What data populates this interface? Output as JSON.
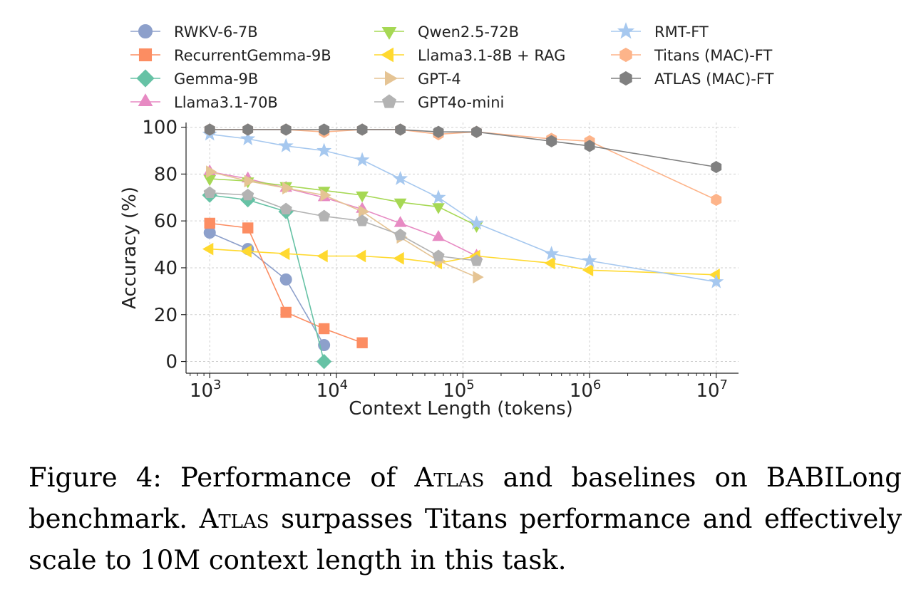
{
  "chart_data": {
    "type": "line",
    "x_scale": "log",
    "xlabel": "Context Length (tokens)",
    "ylabel": "Accuracy (%)",
    "xlim": [
      650,
      15000000
    ],
    "ylim": [
      -5,
      102
    ],
    "grid": true,
    "legend_position": "top",
    "x_ticks": [
      {
        "value": 1000,
        "base": "10",
        "exp": "3"
      },
      {
        "value": 10000,
        "base": "10",
        "exp": "4"
      },
      {
        "value": 100000,
        "base": "10",
        "exp": "5"
      },
      {
        "value": 1000000,
        "base": "10",
        "exp": "6"
      },
      {
        "value": 10000000,
        "base": "10",
        "exp": "7"
      }
    ],
    "y_ticks": [
      0,
      20,
      40,
      60,
      80,
      100
    ],
    "series": [
      {
        "name": "RWKV-6-7B",
        "color": "#8da0cb",
        "marker": "circle",
        "x": [
          1000,
          2000,
          4000,
          8000
        ],
        "y": [
          55,
          48,
          35,
          7
        ]
      },
      {
        "name": "RecurrentGemma-9B",
        "color": "#fc8d62",
        "marker": "square",
        "x": [
          1000,
          2000,
          4000,
          8000,
          16000
        ],
        "y": [
          59,
          57,
          21,
          14,
          8
        ]
      },
      {
        "name": "Gemma-9B",
        "color": "#66c2a5",
        "marker": "diamond",
        "x": [
          1000,
          2000,
          4000,
          8000
        ],
        "y": [
          71,
          69,
          64,
          0
        ]
      },
      {
        "name": "Llama3.1-70B",
        "color": "#e78ac3",
        "marker": "triangle-up",
        "x": [
          1000,
          2000,
          4000,
          8000,
          16000,
          32000,
          64000,
          128000
        ],
        "y": [
          81,
          78,
          74,
          70,
          65,
          59,
          53,
          45
        ]
      },
      {
        "name": "Qwen2.5-72B",
        "color": "#a6d854",
        "marker": "triangle-down",
        "x": [
          1000,
          2000,
          4000,
          8000,
          16000,
          32000,
          64000,
          128000
        ],
        "y": [
          78,
          77,
          75,
          73,
          71,
          68,
          66,
          58
        ]
      },
      {
        "name": "Llama3.1-8B + RAG",
        "color": "#ffd92f",
        "marker": "triangle-left",
        "x": [
          1000,
          2000,
          4000,
          8000,
          16000,
          32000,
          64000,
          128000,
          500000,
          1000000,
          10000000
        ],
        "y": [
          48,
          47,
          46,
          45,
          45,
          44,
          42,
          45,
          42,
          39,
          37
        ]
      },
      {
        "name": "GPT-4",
        "color": "#e5c494",
        "marker": "triangle-right",
        "x": [
          1000,
          2000,
          4000,
          8000,
          16000,
          32000,
          64000,
          128000
        ],
        "y": [
          81,
          77,
          74,
          71,
          64,
          53,
          43,
          36
        ]
      },
      {
        "name": "GPT4o-mini",
        "color": "#b3b3b3",
        "marker": "pentagon",
        "x": [
          1000,
          2000,
          4000,
          8000,
          16000,
          32000,
          64000,
          128000
        ],
        "y": [
          72,
          71,
          65,
          62,
          60,
          54,
          45,
          43
        ]
      },
      {
        "name": "RMT-FT",
        "color": "#a6c8ef",
        "marker": "star",
        "x": [
          1000,
          2000,
          4000,
          8000,
          16000,
          32000,
          64000,
          128000,
          500000,
          1000000,
          10000000
        ],
        "y": [
          97,
          95,
          92,
          90,
          86,
          78,
          70,
          59,
          46,
          43,
          34
        ]
      },
      {
        "name": "Titans (MAC)-FT",
        "color": "#fdb48a",
        "marker": "hexagon",
        "x": [
          1000,
          2000,
          4000,
          8000,
          16000,
          32000,
          64000,
          128000,
          500000,
          1000000,
          10000000
        ],
        "y": [
          99,
          99,
          99,
          98,
          99,
          99,
          97,
          98,
          95,
          94,
          69
        ]
      },
      {
        "name": "ATLAS (MAC)-FT",
        "color": "#808080",
        "marker": "hexagon",
        "x": [
          1000,
          2000,
          4000,
          8000,
          16000,
          32000,
          64000,
          128000,
          500000,
          1000000,
          10000000
        ],
        "y": [
          99,
          99,
          99,
          99,
          99,
          99,
          98,
          98,
          94,
          92,
          83
        ]
      }
    ]
  },
  "caption": {
    "label": "Figure 4:",
    "part1": "Performance of",
    "atlas1": "Atlas",
    "part2": "and baselines on BABILong benchmark.",
    "atlas2": "Atlas",
    "part3": "surpasses Titans performance and effectively scale to 10M context length in this task."
  }
}
